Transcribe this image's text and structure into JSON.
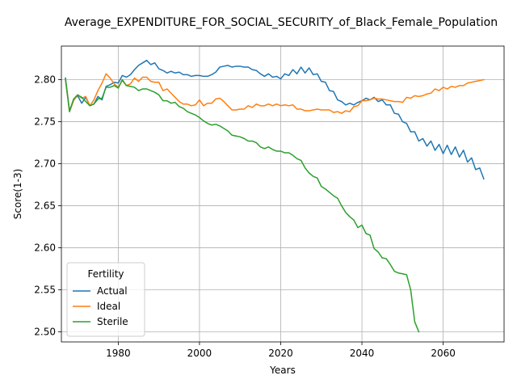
{
  "chart_data": {
    "type": "line",
    "title": "Average_EXPENDITURE_FOR_SOCIAL_SECURITY_of_Black_Female_Population",
    "xlabel": "Years",
    "ylabel": "Score(1-3)",
    "xlim": [
      1966,
      2075
    ],
    "ylim": [
      2.488,
      2.84
    ],
    "xticks": [
      1980,
      2000,
      2020,
      2040,
      2060
    ],
    "yticks": [
      2.5,
      2.55,
      2.6,
      2.65,
      2.7,
      2.75,
      2.8
    ],
    "grid": true,
    "legend": {
      "title": "Fertility",
      "position": "lower-left"
    },
    "series": [
      {
        "name": "Actual",
        "color": "#1f77b4",
        "points": [
          [
            1967,
            2.802
          ],
          [
            1968,
            2.763
          ],
          [
            1969,
            2.776
          ],
          [
            1970,
            2.781
          ],
          [
            1971,
            2.772
          ],
          [
            1972,
            2.779
          ],
          [
            1973,
            2.769
          ],
          [
            1974,
            2.771
          ],
          [
            1975,
            2.78
          ],
          [
            1976,
            2.776
          ],
          [
            1977,
            2.792
          ],
          [
            1978,
            2.794
          ],
          [
            1979,
            2.797
          ],
          [
            1980,
            2.796
          ],
          [
            1981,
            2.805
          ],
          [
            1982,
            2.803
          ],
          [
            1983,
            2.806
          ],
          [
            1984,
            2.812
          ],
          [
            1985,
            2.817
          ],
          [
            1986,
            2.82
          ],
          [
            1987,
            2.823
          ],
          [
            1988,
            2.818
          ],
          [
            1989,
            2.82
          ],
          [
            1990,
            2.813
          ],
          [
            1991,
            2.811
          ],
          [
            1992,
            2.808
          ],
          [
            1993,
            2.81
          ],
          [
            1994,
            2.808
          ],
          [
            1995,
            2.809
          ],
          [
            1996,
            2.806
          ],
          [
            1997,
            2.806
          ],
          [
            1998,
            2.804
          ],
          [
            1999,
            2.805
          ],
          [
            2000,
            2.805
          ],
          [
            2001,
            2.804
          ],
          [
            2002,
            2.804
          ],
          [
            2003,
            2.806
          ],
          [
            2004,
            2.809
          ],
          [
            2005,
            2.815
          ],
          [
            2006,
            2.816
          ],
          [
            2007,
            2.817
          ],
          [
            2008,
            2.815
          ],
          [
            2009,
            2.816
          ],
          [
            2010,
            2.816
          ],
          [
            2011,
            2.815
          ],
          [
            2012,
            2.815
          ],
          [
            2013,
            2.812
          ],
          [
            2014,
            2.811
          ],
          [
            2015,
            2.807
          ],
          [
            2016,
            2.804
          ],
          [
            2017,
            2.807
          ],
          [
            2018,
            2.803
          ],
          [
            2019,
            2.804
          ],
          [
            2020,
            2.801
          ],
          [
            2021,
            2.807
          ],
          [
            2022,
            2.805
          ],
          [
            2023,
            2.812
          ],
          [
            2024,
            2.807
          ],
          [
            2025,
            2.815
          ],
          [
            2026,
            2.808
          ],
          [
            2027,
            2.814
          ],
          [
            2028,
            2.806
          ],
          [
            2029,
            2.807
          ],
          [
            2030,
            2.798
          ],
          [
            2031,
            2.797
          ],
          [
            2032,
            2.787
          ],
          [
            2033,
            2.786
          ],
          [
            2034,
            2.776
          ],
          [
            2035,
            2.774
          ],
          [
            2036,
            2.77
          ],
          [
            2037,
            2.772
          ],
          [
            2038,
            2.77
          ],
          [
            2039,
            2.773
          ],
          [
            2040,
            2.775
          ],
          [
            2041,
            2.778
          ],
          [
            2042,
            2.776
          ],
          [
            2043,
            2.779
          ],
          [
            2044,
            2.774
          ],
          [
            2045,
            2.776
          ],
          [
            2046,
            2.77
          ],
          [
            2047,
            2.77
          ],
          [
            2048,
            2.76
          ],
          [
            2049,
            2.759
          ],
          [
            2050,
            2.75
          ],
          [
            2051,
            2.748
          ],
          [
            2052,
            2.738
          ],
          [
            2053,
            2.738
          ],
          [
            2054,
            2.727
          ],
          [
            2055,
            2.73
          ],
          [
            2056,
            2.721
          ],
          [
            2057,
            2.727
          ],
          [
            2058,
            2.716
          ],
          [
            2059,
            2.723
          ],
          [
            2060,
            2.712
          ],
          [
            2061,
            2.722
          ],
          [
            2062,
            2.711
          ],
          [
            2063,
            2.72
          ],
          [
            2064,
            2.708
          ],
          [
            2065,
            2.716
          ],
          [
            2066,
            2.702
          ],
          [
            2067,
            2.707
          ],
          [
            2068,
            2.693
          ],
          [
            2069,
            2.695
          ],
          [
            2070,
            2.682
          ]
        ]
      },
      {
        "name": "Ideal",
        "color": "#ff7f0e",
        "points": [
          [
            1967,
            2.8
          ],
          [
            1968,
            2.762
          ],
          [
            1969,
            2.775
          ],
          [
            1970,
            2.782
          ],
          [
            1971,
            2.778
          ],
          [
            1972,
            2.78
          ],
          [
            1973,
            2.769
          ],
          [
            1974,
            2.776
          ],
          [
            1975,
            2.787
          ],
          [
            1976,
            2.796
          ],
          [
            1977,
            2.807
          ],
          [
            1978,
            2.802
          ],
          [
            1979,
            2.795
          ],
          [
            1980,
            2.791
          ],
          [
            1981,
            2.799
          ],
          [
            1982,
            2.793
          ],
          [
            1983,
            2.795
          ],
          [
            1984,
            2.802
          ],
          [
            1985,
            2.798
          ],
          [
            1986,
            2.803
          ],
          [
            1987,
            2.803
          ],
          [
            1988,
            2.798
          ],
          [
            1989,
            2.797
          ],
          [
            1990,
            2.797
          ],
          [
            1991,
            2.787
          ],
          [
            1992,
            2.789
          ],
          [
            1993,
            2.784
          ],
          [
            1994,
            2.779
          ],
          [
            1995,
            2.774
          ],
          [
            1996,
            2.771
          ],
          [
            1997,
            2.771
          ],
          [
            1998,
            2.769
          ],
          [
            1999,
            2.77
          ],
          [
            2000,
            2.776
          ],
          [
            2001,
            2.769
          ],
          [
            2002,
            2.772
          ],
          [
            2003,
            2.772
          ],
          [
            2004,
            2.777
          ],
          [
            2005,
            2.778
          ],
          [
            2006,
            2.774
          ],
          [
            2007,
            2.769
          ],
          [
            2008,
            2.764
          ],
          [
            2009,
            2.764
          ],
          [
            2010,
            2.765
          ],
          [
            2011,
            2.765
          ],
          [
            2012,
            2.769
          ],
          [
            2013,
            2.767
          ],
          [
            2014,
            2.771
          ],
          [
            2015,
            2.769
          ],
          [
            2016,
            2.769
          ],
          [
            2017,
            2.771
          ],
          [
            2018,
            2.769
          ],
          [
            2019,
            2.771
          ],
          [
            2020,
            2.769
          ],
          [
            2021,
            2.77
          ],
          [
            2022,
            2.769
          ],
          [
            2023,
            2.77
          ],
          [
            2024,
            2.765
          ],
          [
            2025,
            2.765
          ],
          [
            2026,
            2.763
          ],
          [
            2027,
            2.763
          ],
          [
            2028,
            2.764
          ],
          [
            2029,
            2.765
          ],
          [
            2030,
            2.764
          ],
          [
            2031,
            2.764
          ],
          [
            2032,
            2.764
          ],
          [
            2033,
            2.761
          ],
          [
            2034,
            2.762
          ],
          [
            2035,
            2.76
          ],
          [
            2036,
            2.763
          ],
          [
            2037,
            2.762
          ],
          [
            2038,
            2.768
          ],
          [
            2039,
            2.769
          ],
          [
            2040,
            2.775
          ],
          [
            2041,
            2.775
          ],
          [
            2042,
            2.776
          ],
          [
            2043,
            2.778
          ],
          [
            2044,
            2.777
          ],
          [
            2045,
            2.777
          ],
          [
            2046,
            2.776
          ],
          [
            2047,
            2.775
          ],
          [
            2048,
            2.774
          ],
          [
            2049,
            2.774
          ],
          [
            2050,
            2.773
          ],
          [
            2051,
            2.779
          ],
          [
            2052,
            2.778
          ],
          [
            2053,
            2.781
          ],
          [
            2054,
            2.78
          ],
          [
            2055,
            2.781
          ],
          [
            2056,
            2.783
          ],
          [
            2057,
            2.784
          ],
          [
            2058,
            2.789
          ],
          [
            2059,
            2.787
          ],
          [
            2060,
            2.791
          ],
          [
            2061,
            2.789
          ],
          [
            2062,
            2.792
          ],
          [
            2063,
            2.791
          ],
          [
            2064,
            2.793
          ],
          [
            2065,
            2.793
          ],
          [
            2066,
            2.796
          ],
          [
            2067,
            2.797
          ],
          [
            2068,
            2.798
          ],
          [
            2069,
            2.799
          ],
          [
            2070,
            2.8
          ]
        ]
      },
      {
        "name": "Sterile",
        "color": "#2ca02c",
        "points": [
          [
            1967,
            2.801
          ],
          [
            1968,
            2.762
          ],
          [
            1969,
            2.777
          ],
          [
            1970,
            2.782
          ],
          [
            1971,
            2.779
          ],
          [
            1972,
            2.774
          ],
          [
            1973,
            2.769
          ],
          [
            1974,
            2.771
          ],
          [
            1975,
            2.777
          ],
          [
            1976,
            2.778
          ],
          [
            1977,
            2.791
          ],
          [
            1978,
            2.791
          ],
          [
            1979,
            2.793
          ],
          [
            1980,
            2.79
          ],
          [
            1981,
            2.8
          ],
          [
            1982,
            2.793
          ],
          [
            1983,
            2.792
          ],
          [
            1984,
            2.791
          ],
          [
            1985,
            2.787
          ],
          [
            1986,
            2.789
          ],
          [
            1987,
            2.789
          ],
          [
            1988,
            2.787
          ],
          [
            1989,
            2.785
          ],
          [
            1990,
            2.782
          ],
          [
            1991,
            2.775
          ],
          [
            1992,
            2.775
          ],
          [
            1993,
            2.772
          ],
          [
            1994,
            2.773
          ],
          [
            1995,
            2.768
          ],
          [
            1996,
            2.766
          ],
          [
            1997,
            2.762
          ],
          [
            1998,
            2.76
          ],
          [
            1999,
            2.758
          ],
          [
            2000,
            2.755
          ],
          [
            2001,
            2.751
          ],
          [
            2002,
            2.748
          ],
          [
            2003,
            2.746
          ],
          [
            2004,
            2.747
          ],
          [
            2005,
            2.745
          ],
          [
            2006,
            2.742
          ],
          [
            2007,
            2.739
          ],
          [
            2008,
            2.734
          ],
          [
            2009,
            2.733
          ],
          [
            2010,
            2.732
          ],
          [
            2011,
            2.73
          ],
          [
            2012,
            2.727
          ],
          [
            2013,
            2.727
          ],
          [
            2014,
            2.725
          ],
          [
            2015,
            2.72
          ],
          [
            2016,
            2.718
          ],
          [
            2017,
            2.72
          ],
          [
            2018,
            2.717
          ],
          [
            2019,
            2.715
          ],
          [
            2020,
            2.715
          ],
          [
            2021,
            2.713
          ],
          [
            2022,
            2.713
          ],
          [
            2023,
            2.71
          ],
          [
            2024,
            2.706
          ],
          [
            2025,
            2.704
          ],
          [
            2026,
            2.695
          ],
          [
            2027,
            2.689
          ],
          [
            2028,
            2.685
          ],
          [
            2029,
            2.683
          ],
          [
            2030,
            2.673
          ],
          [
            2031,
            2.67
          ],
          [
            2032,
            2.666
          ],
          [
            2033,
            2.662
          ],
          [
            2034,
            2.659
          ],
          [
            2035,
            2.65
          ],
          [
            2036,
            2.642
          ],
          [
            2037,
            2.637
          ],
          [
            2038,
            2.633
          ],
          [
            2039,
            2.624
          ],
          [
            2040,
            2.627
          ],
          [
            2041,
            2.617
          ],
          [
            2042,
            2.615
          ],
          [
            2043,
            2.599
          ],
          [
            2044,
            2.595
          ],
          [
            2045,
            2.588
          ],
          [
            2046,
            2.587
          ],
          [
            2047,
            2.58
          ],
          [
            2048,
            2.572
          ],
          [
            2049,
            2.57
          ],
          [
            2050,
            2.569
          ],
          [
            2051,
            2.568
          ],
          [
            2052,
            2.55
          ],
          [
            2053,
            2.512
          ],
          [
            2054,
            2.5
          ]
        ]
      }
    ]
  }
}
